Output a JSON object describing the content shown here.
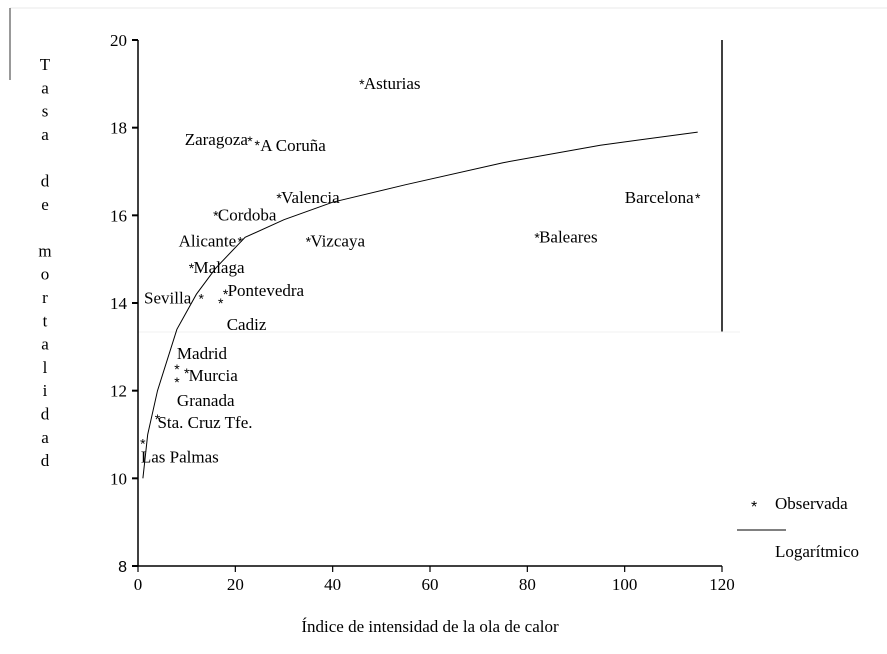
{
  "chart_data": {
    "type": "scatter",
    "xlabel": "Índice de intensidad de la ola de  calor",
    "ylabel": "Tasa de mortalidad",
    "xlim": [
      0,
      120
    ],
    "ylim": [
      8,
      20
    ],
    "x_ticks": [
      0,
      20,
      40,
      60,
      80,
      100,
      120
    ],
    "y_ticks": [
      8,
      10,
      12,
      14,
      16,
      18,
      20
    ],
    "grid": false,
    "legend_position": "bottom-right",
    "series": [
      {
        "name": "Observada",
        "marker": "asterisk",
        "points": [
          {
            "label": "Asturias",
            "x": 46,
            "y": 19.0
          },
          {
            "label": "Zaragoza",
            "x": 23,
            "y": 17.7
          },
          {
            "label": "A Coruña",
            "x": 24.5,
            "y": 17.6
          },
          {
            "label": "Valencia",
            "x": 29,
            "y": 16.4
          },
          {
            "label": "Barcelona",
            "x": 115,
            "y": 16.4
          },
          {
            "label": "Cordoba",
            "x": 16,
            "y": 16.0
          },
          {
            "label": "Baleares",
            "x": 82,
            "y": 15.5
          },
          {
            "label": "Alicante",
            "x": 21,
            "y": 15.4
          },
          {
            "label": "Vizcaya",
            "x": 35,
            "y": 15.4
          },
          {
            "label": "Malaga",
            "x": 11,
            "y": 14.8
          },
          {
            "label": "Sevilla",
            "x": 13,
            "y": 14.1
          },
          {
            "label": "Pontevedra",
            "x": 18,
            "y": 14.2
          },
          {
            "label": "Cadiz",
            "x": 17,
            "y": 14.0
          },
          {
            "label": "Madrid",
            "x": 8,
            "y": 12.5
          },
          {
            "label": "Murcia",
            "x": 10,
            "y": 12.4
          },
          {
            "label": "Granada",
            "x": 8,
            "y": 12.2
          },
          {
            "label": "Sta. Cruz Tfe.",
            "x": 4,
            "y": 11.35
          },
          {
            "label": "Las Palmas",
            "x": 1,
            "y": 10.8
          }
        ]
      },
      {
        "name": "Logarítmico",
        "type": "line",
        "points": [
          {
            "x": 1,
            "y": 10.0
          },
          {
            "x": 2,
            "y": 11.0
          },
          {
            "x": 4,
            "y": 12.0
          },
          {
            "x": 8,
            "y": 13.4
          },
          {
            "x": 12,
            "y": 14.2
          },
          {
            "x": 16,
            "y": 14.8
          },
          {
            "x": 22,
            "y": 15.5
          },
          {
            "x": 30,
            "y": 15.9
          },
          {
            "x": 40,
            "y": 16.3
          },
          {
            "x": 55,
            "y": 16.7
          },
          {
            "x": 75,
            "y": 17.2
          },
          {
            "x": 95,
            "y": 17.6
          },
          {
            "x": 115,
            "y": 17.9
          }
        ]
      }
    ]
  },
  "legend": {
    "observed_label": "Observada",
    "fit_label": "Logarítmico"
  }
}
